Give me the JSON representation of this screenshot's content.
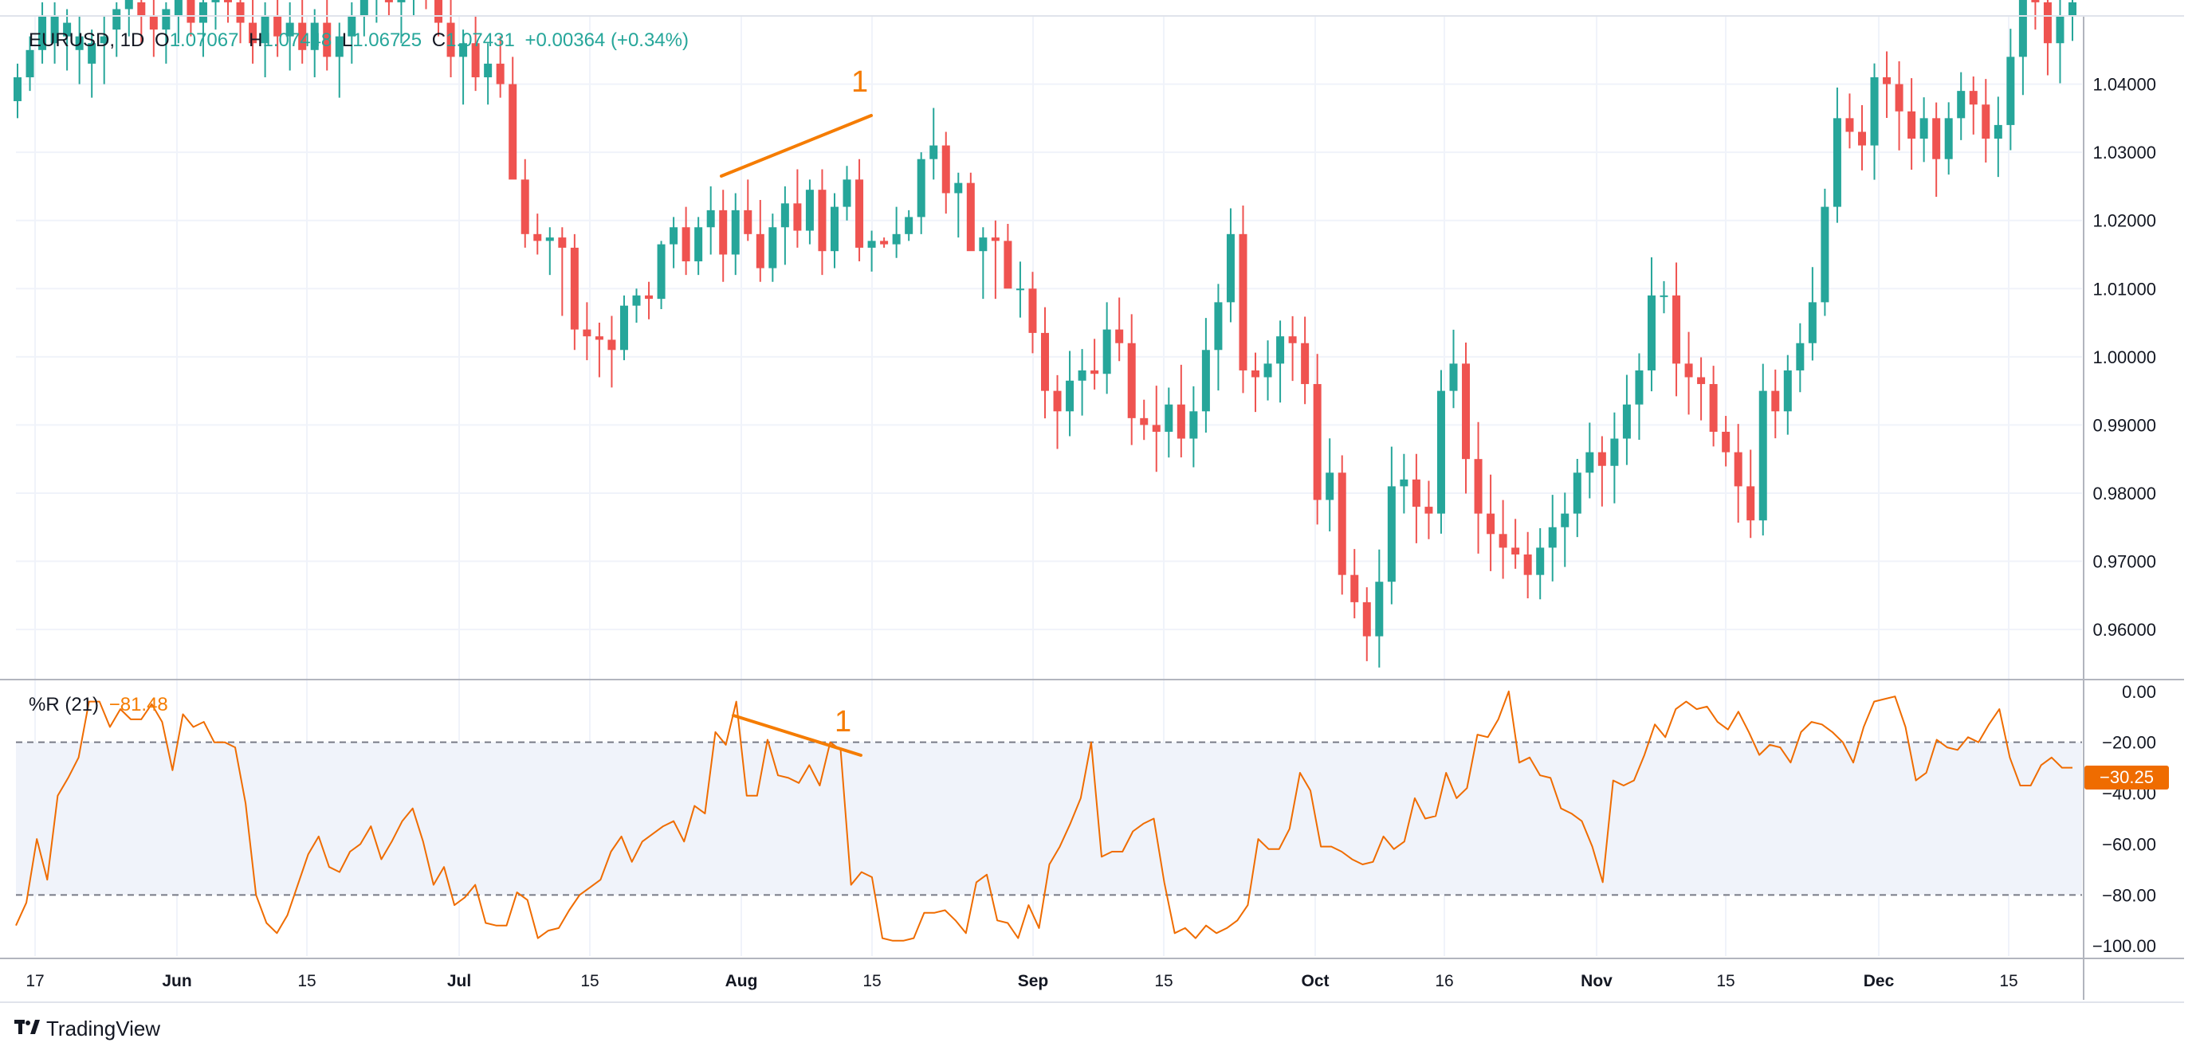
{
  "legend": {
    "symbol": "EURUSD, 1D",
    "open_label": "O",
    "open": "1.07067",
    "high_label": "H",
    "high": "1.07448",
    "low_label": "L",
    "low": "1.06725",
    "close_label": "C",
    "close": "1.07431",
    "change": "+0.00364 (+0.34%)"
  },
  "indicator_legend": {
    "name": "%R (21)",
    "value": "−81.48"
  },
  "last_value_badge": "−30.25",
  "branding": {
    "name": "TradingView"
  },
  "colors": {
    "up": "#26a69a",
    "down": "#ef5350",
    "indicator": "#ef6c00",
    "annotation": "#f57c00",
    "band": "#f0f3fa"
  },
  "chart_data": [
    {
      "type": "candlestick",
      "symbol": "EURUSD",
      "interval": "1D",
      "ylim": [
        0.953,
        1.05
      ],
      "y_ticks": [
        "1.04000",
        "1.03000",
        "1.02000",
        "1.01000",
        "1.00000",
        "0.99000",
        "0.98000",
        "0.97000",
        "0.96000"
      ],
      "y_tick_values": [
        1.04,
        1.03,
        1.02,
        1.01,
        1.0,
        0.99,
        0.98,
        0.97,
        0.96
      ],
      "x_tick_labels": [
        "17",
        "Jun",
        "15",
        "Jul",
        "15",
        "Aug",
        "15",
        "Sep",
        "15",
        "Oct",
        "16",
        "Nov",
        "15",
        "Dec",
        "15"
      ],
      "annotations": [
        {
          "label": "1",
          "type": "trendline",
          "from": {
            "date": "2022-07-28",
            "price": 1.026
          },
          "to": {
            "date": "2022-08-15",
            "price": 1.0345
          }
        }
      ],
      "candles_approx": [
        [
          1.0375,
          1.043,
          1.035,
          1.041
        ],
        [
          1.041,
          1.047,
          1.039,
          1.045
        ],
        [
          1.045,
          1.052,
          1.043,
          1.05
        ],
        [
          1.046,
          1.052,
          1.043,
          1.05
        ],
        [
          1.047,
          1.051,
          1.042,
          1.049
        ],
        [
          1.045,
          1.05,
          1.04,
          1.047
        ],
        [
          1.043,
          1.048,
          1.038,
          1.046
        ],
        [
          1.046,
          1.05,
          1.04,
          1.047
        ],
        [
          1.048,
          1.052,
          1.044,
          1.051
        ],
        [
          1.051,
          1.056,
          1.047,
          1.053
        ],
        [
          1.052,
          1.057,
          1.046,
          1.05
        ],
        [
          1.05,
          1.055,
          1.044,
          1.048
        ],
        [
          1.048,
          1.052,
          1.043,
          1.051
        ],
        [
          1.05,
          1.056,
          1.046,
          1.054
        ],
        [
          1.053,
          1.058,
          1.047,
          1.049
        ],
        [
          1.049,
          1.054,
          1.044,
          1.052
        ],
        [
          1.052,
          1.056,
          1.048,
          1.054
        ],
        [
          1.054,
          1.058,
          1.049,
          1.052
        ],
        [
          1.052,
          1.056,
          1.046,
          1.049
        ],
        [
          1.049,
          1.053,
          1.043,
          1.046
        ],
        [
          1.046,
          1.052,
          1.041,
          1.05
        ],
        [
          1.05,
          1.054,
          1.044,
          1.047
        ],
        [
          1.047,
          1.052,
          1.042,
          1.049
        ],
        [
          1.049,
          1.053,
          1.043,
          1.045
        ],
        [
          1.045,
          1.051,
          1.041,
          1.049
        ],
        [
          1.049,
          1.053,
          1.042,
          1.044
        ],
        [
          1.044,
          1.049,
          1.038,
          1.047
        ],
        [
          1.047,
          1.052,
          1.043,
          1.05
        ],
        [
          1.05,
          1.055,
          1.047,
          1.053
        ],
        [
          1.053,
          1.057,
          1.049,
          1.055
        ],
        [
          1.055,
          1.06,
          1.05,
          1.052
        ],
        [
          1.052,
          1.057,
          1.046,
          1.054
        ],
        [
          1.054,
          1.058,
          1.05,
          1.056
        ],
        [
          1.056,
          1.06,
          1.051,
          1.053
        ],
        [
          1.053,
          1.056,
          1.047,
          1.049
        ],
        [
          1.049,
          1.053,
          1.041,
          1.044
        ],
        [
          1.044,
          1.048,
          1.037,
          1.046
        ],
        [
          1.046,
          1.05,
          1.039,
          1.041
        ],
        [
          1.041,
          1.046,
          1.037,
          1.043
        ],
        [
          1.043,
          1.047,
          1.038,
          1.04
        ],
        [
          1.04,
          1.044,
          1.033,
          1.026
        ],
        [
          1.026,
          1.029,
          1.016,
          1.018
        ],
        [
          1.018,
          1.021,
          1.015,
          1.017
        ],
        [
          1.017,
          1.019,
          1.012,
          1.0175
        ],
        [
          1.0175,
          1.019,
          1.006,
          1.016
        ],
        [
          1.016,
          1.018,
          1.001,
          1.004
        ],
        [
          1.004,
          1.008,
          0.9995,
          1.003
        ],
        [
          1.003,
          1.005,
          0.997,
          1.0025
        ],
        [
          1.0025,
          1.006,
          0.9955,
          1.001
        ],
        [
          1.001,
          1.009,
          0.9995,
          1.0075
        ],
        [
          1.0075,
          1.01,
          1.005,
          1.009
        ],
        [
          1.009,
          1.011,
          1.0055,
          1.0085
        ],
        [
          1.0085,
          1.017,
          1.007,
          1.0165
        ],
        [
          1.0165,
          1.0205,
          1.013,
          1.019
        ],
        [
          1.019,
          1.022,
          1.012,
          1.014
        ],
        [
          1.014,
          1.0205,
          1.012,
          1.019
        ],
        [
          1.019,
          1.025,
          1.015,
          1.0215
        ],
        [
          1.0215,
          1.0245,
          1.011,
          1.015
        ],
        [
          1.015,
          1.024,
          1.012,
          1.0215
        ],
        [
          1.0215,
          1.026,
          1.017,
          1.018
        ],
        [
          1.018,
          1.023,
          1.011,
          1.013
        ],
        [
          1.013,
          1.021,
          1.011,
          1.019
        ],
        [
          1.019,
          1.025,
          1.0135,
          1.0225
        ],
        [
          1.0225,
          1.0275,
          1.016,
          1.0185
        ],
        [
          1.0185,
          1.026,
          1.0165,
          1.0245
        ],
        [
          1.0245,
          1.0275,
          1.012,
          1.0155
        ],
        [
          1.0155,
          1.024,
          1.013,
          1.022
        ],
        [
          1.022,
          1.028,
          1.02,
          1.026
        ],
        [
          1.026,
          1.029,
          1.014,
          1.016
        ],
        [
          1.016,
          1.0185,
          1.0125,
          1.017
        ],
        [
          1.017,
          1.0175,
          1.016,
          1.0165
        ],
        [
          1.0165,
          1.022,
          1.0145,
          1.018
        ],
        [
          1.018,
          1.0215,
          1.017,
          1.0205
        ],
        [
          1.0205,
          1.03,
          1.018,
          1.029
        ],
        [
          1.029,
          1.0365,
          1.026,
          1.031
        ],
        [
          1.031,
          1.033,
          1.021,
          1.024
        ],
        [
          1.024,
          1.027,
          1.0175,
          1.0255
        ],
        [
          1.0255,
          1.027,
          1.0195,
          1.0155
        ],
        [
          1.0155,
          1.019,
          1.0085,
          1.0175
        ],
        [
          1.0175,
          1.02,
          1.0085,
          1.017
        ],
        [
          1.017,
          1.0195,
          1.012,
          1.01
        ]
      ]
    },
    {
      "type": "line",
      "name": "%R (21)",
      "ylim": [
        -104,
        4
      ],
      "y_ticks": [
        "0.00",
        "−20.00",
        "−40.00",
        "−60.00",
        "−80.00",
        "−100.00"
      ],
      "y_tick_values": [
        0,
        -20,
        -40,
        -60,
        -80,
        -100
      ],
      "bands": [
        -20,
        -80
      ],
      "annotations": [
        {
          "label": "1",
          "type": "trendline",
          "from": {
            "date": "2022-07-28",
            "value": -4
          },
          "to": {
            "date": "2022-08-15",
            "value": -22
          }
        }
      ],
      "values_approx": [
        -92,
        -83,
        -58,
        -74,
        -41,
        -34,
        -26,
        -4,
        -4,
        -14,
        -7,
        -11,
        -11,
        -5,
        -12,
        -31,
        -9,
        -14,
        -12,
        -20,
        -20,
        -22,
        -44,
        -80,
        -91,
        -95,
        -88,
        -76,
        -64,
        -57,
        -69,
        -71,
        -63,
        -60,
        -53,
        -66,
        -59,
        -51,
        -46,
        -59,
        -76,
        -69,
        -84,
        -81,
        -76,
        -91,
        -92,
        -92,
        -79,
        -82,
        -97,
        -94,
        -93,
        -86,
        -80,
        -77,
        -74,
        -63,
        -57,
        -67,
        -59,
        -56,
        -53,
        -51,
        -59,
        -45,
        -48,
        -16,
        -21,
        -4,
        -41,
        -41,
        -19,
        -33,
        -34,
        -36,
        -29,
        -37,
        -20,
        -23,
        -76,
        -71,
        -73,
        -97,
        -98,
        -98,
        -97,
        -87,
        -87,
        -86,
        -90,
        -95,
        -75,
        -72,
        -90,
        -91,
        -97,
        -84,
        -93,
        -68,
        -61,
        -52,
        -42,
        -20,
        -65,
        -63,
        -63,
        -55,
        -52,
        -50,
        -75,
        -95,
        -93,
        -97,
        -92,
        -95,
        -93,
        -90,
        -84,
        -58,
        -62,
        -62,
        -54,
        -32,
        -39,
        -61,
        -61,
        -63,
        -66,
        -68,
        -67,
        -57,
        -62,
        -59,
        -42,
        -50,
        -49,
        -32,
        -42,
        -38,
        -17,
        -18,
        -11,
        0,
        -28,
        -26,
        -33,
        -34,
        -46,
        -48,
        -51,
        -61,
        -75,
        -35,
        -37,
        -35,
        -25,
        -13,
        -18,
        -7,
        -4,
        -7,
        -6,
        -12,
        -15,
        -8,
        -16,
        -25,
        -21,
        -22,
        -28,
        -16,
        -12,
        -13,
        -16,
        -20,
        -28,
        -14,
        -4,
        -3,
        -2,
        -14,
        -35,
        -32,
        -19,
        -22,
        -23,
        -18,
        -20,
        -13,
        -7,
        -26,
        -37,
        -37,
        -29,
        -26,
        -30,
        -30
      ]
    }
  ]
}
